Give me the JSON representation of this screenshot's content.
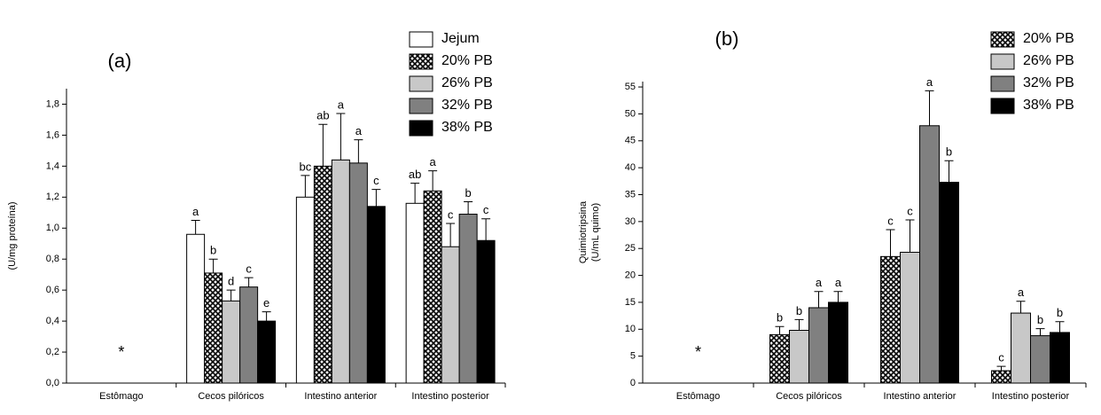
{
  "chart_data": [
    {
      "type": "bar",
      "title": "(a)",
      "ylabel": [
        "(U/mg proteína)"
      ],
      "categories": [
        "Estômago",
        "Cecos pilóricos",
        "Intestino anterior",
        "Intestino posterior"
      ],
      "annotation": "*",
      "series": [
        {
          "name": "Jejum",
          "color": "#ffffff",
          "values": [
            null,
            0.96,
            1.2,
            1.16
          ],
          "errors": [
            null,
            0.09,
            0.14,
            0.13
          ],
          "letters": [
            null,
            "a",
            "bc",
            "ab"
          ]
        },
        {
          "name": "20% PB",
          "color": "#000000",
          "pattern": "crosshatch",
          "values": [
            null,
            0.71,
            1.4,
            1.24
          ],
          "errors": [
            null,
            0.09,
            0.27,
            0.13
          ],
          "letters": [
            null,
            "b",
            "ab",
            "a"
          ]
        },
        {
          "name": "26% PB",
          "color": "#c8c8c8",
          "values": [
            null,
            0.53,
            1.44,
            0.88
          ],
          "errors": [
            null,
            0.07,
            0.3,
            0.15
          ],
          "letters": [
            null,
            "d",
            "a",
            "c"
          ]
        },
        {
          "name": "32% PB",
          "color": "#808080",
          "values": [
            null,
            0.62,
            1.42,
            1.09
          ],
          "errors": [
            null,
            0.06,
            0.15,
            0.08
          ],
          "letters": [
            null,
            "c",
            "a",
            "b"
          ]
        },
        {
          "name": "38% PB",
          "color": "#000000",
          "values": [
            null,
            0.4,
            1.14,
            0.92
          ],
          "errors": [
            null,
            0.06,
            0.11,
            0.14
          ],
          "letters": [
            null,
            "e",
            "c",
            "c"
          ]
        }
      ],
      "ylim": [
        0,
        1.9
      ],
      "yticks": [
        {
          "value": 0,
          "label": "0,0"
        },
        {
          "value": 0.2,
          "label": "0,2"
        },
        {
          "value": 0.4,
          "label": "0,4"
        },
        {
          "value": 0.6,
          "label": "0,6"
        },
        {
          "value": 0.8,
          "label": "0,8"
        },
        {
          "value": 1.0,
          "label": "1,0"
        },
        {
          "value": 1.2,
          "label": "1,2"
        },
        {
          "value": 1.4,
          "label": "1,4"
        },
        {
          "value": 1.6,
          "label": "1,6"
        },
        {
          "value": 1.8,
          "label": "1,8"
        }
      ]
    },
    {
      "type": "bar",
      "title": "(b)",
      "ylabel": [
        "Quimiotripsina",
        "(U/mL quimo)"
      ],
      "categories": [
        "Estômago",
        "Cecos pilóricos",
        "Intestino anterior",
        "Intestino posterior"
      ],
      "annotation": "*",
      "series": [
        {
          "name": "20% PB",
          "color": "#000000",
          "pattern": "crosshatch",
          "values": [
            null,
            9,
            23.5,
            2.3
          ],
          "errors": [
            null,
            1.5,
            5,
            0.8
          ],
          "letters": [
            null,
            "b",
            "c",
            "c"
          ]
        },
        {
          "name": "26% PB",
          "color": "#c8c8c8",
          "values": [
            null,
            9.8,
            24.3,
            13
          ],
          "errors": [
            null,
            2,
            6,
            2.2
          ],
          "letters": [
            null,
            "b",
            "c",
            "a"
          ]
        },
        {
          "name": "32% PB",
          "color": "#808080",
          "values": [
            null,
            14,
            47.8,
            8.8
          ],
          "errors": [
            null,
            3,
            6.5,
            1.3
          ],
          "letters": [
            null,
            "a",
            "a",
            "b"
          ]
        },
        {
          "name": "38% PB",
          "color": "#000000",
          "values": [
            null,
            15,
            37.3,
            9.4
          ],
          "errors": [
            null,
            2,
            4,
            2
          ],
          "letters": [
            null,
            "a",
            "b",
            "b"
          ]
        }
      ],
      "ylim": [
        0,
        56
      ],
      "yticks": [
        0,
        5,
        10,
        15,
        20,
        25,
        30,
        35,
        40,
        45,
        50,
        55
      ]
    }
  ]
}
